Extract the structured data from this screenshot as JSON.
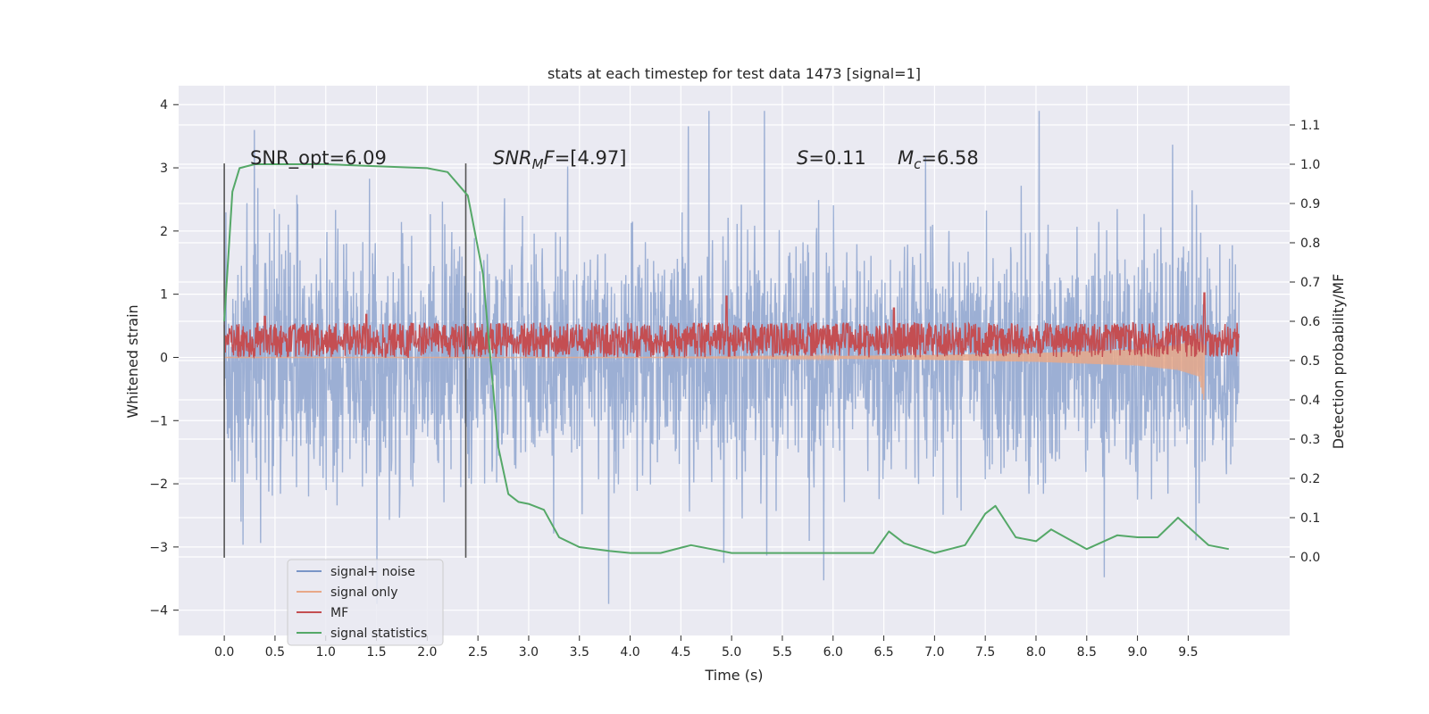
{
  "chart_data": {
    "type": "line",
    "title": "stats at each timestep for test data 1473 [signal=1]",
    "xlabel": "Time (s)",
    "ylabel": "Whitened strain",
    "y2label": "Detection probability/MF",
    "xlim": [
      -0.45,
      10.5
    ],
    "ylim": [
      -4.4,
      4.3
    ],
    "y2lim": [
      -0.2,
      1.2
    ],
    "x_ticks": [
      "0.0",
      "0.5",
      "1.0",
      "1.5",
      "2.0",
      "2.5",
      "3.0",
      "3.5",
      "4.0",
      "4.5",
      "5.0",
      "5.5",
      "6.0",
      "6.5",
      "7.0",
      "7.5",
      "8.0",
      "8.5",
      "9.0",
      "9.5"
    ],
    "y_ticks": [
      "4",
      "3",
      "2",
      "1",
      "0",
      "−1",
      "−2",
      "−3",
      "−4"
    ],
    "y2_ticks": [
      "1.1",
      "1.0",
      "0.9",
      "0.8",
      "0.7",
      "0.6",
      "0.5",
      "0.4",
      "0.3",
      "0.2",
      "0.1",
      "0.0"
    ],
    "grid": true,
    "legend_position": "lower-left",
    "colors": {
      "background": "#eaeaf2",
      "grid": "#ffffff",
      "signal_noise": "#7a96c7",
      "signal_only": "#dd8452",
      "mf": "#c44e52",
      "statistics": "#55a868",
      "vline": "#555555"
    },
    "annotations": {
      "snr_opt": "SNR_opt=6.09",
      "snr_mf": "SNR_MF=[4.97]",
      "s_value": "S=0.11",
      "mc_value": "M_c=6.58"
    },
    "vlines": [
      0.0,
      2.38
    ],
    "series": [
      {
        "name": "signal+ noise",
        "x_range": [
          0.0,
          10.0
        ],
        "abs_envelope_typical": 1.5,
        "abs_peak": 3.9
      },
      {
        "name": "signal only",
        "x": [
          0.0,
          4.0,
          5.0,
          6.0,
          7.0,
          8.0,
          9.0,
          9.4,
          9.6,
          9.66
        ],
        "y_lower": [
          0.0,
          0.0,
          -0.01,
          -0.02,
          -0.04,
          -0.07,
          -0.13,
          -0.2,
          -0.3,
          -0.72
        ],
        "y_upper": [
          0.0,
          0.0,
          0.01,
          0.02,
          0.04,
          0.07,
          0.13,
          0.2,
          0.3,
          0.2
        ]
      },
      {
        "name": "MF",
        "x_range": [
          0.0,
          10.0
        ],
        "y_band": [
          0.0,
          0.55
        ],
        "peaks": [
          [
            0.4,
            0.65
          ],
          [
            1.4,
            0.68
          ],
          [
            4.95,
            0.97
          ],
          [
            6.6,
            0.78
          ],
          [
            9.66,
            1.02
          ]
        ]
      },
      {
        "name": "signal statistics",
        "x": [
          0.0,
          0.08,
          0.15,
          0.3,
          0.5,
          1.0,
          1.5,
          2.0,
          2.2,
          2.4,
          2.55,
          2.7,
          2.8,
          2.9,
          3.0,
          3.15,
          3.3,
          3.5,
          3.8,
          4.0,
          4.3,
          4.6,
          5.0,
          5.5,
          6.0,
          6.4,
          6.55,
          6.7,
          7.0,
          7.3,
          7.5,
          7.6,
          7.8,
          8.0,
          8.15,
          8.5,
          8.8,
          9.0,
          9.2,
          9.4,
          9.7,
          9.9
        ],
        "y": [
          0.6,
          0.93,
          0.99,
          1.0,
          1.0,
          1.0,
          0.995,
          0.99,
          0.98,
          0.92,
          0.72,
          0.28,
          0.16,
          0.14,
          0.135,
          0.12,
          0.05,
          0.025,
          0.015,
          0.01,
          0.01,
          0.03,
          0.01,
          0.01,
          0.01,
          0.01,
          0.065,
          0.035,
          0.01,
          0.03,
          0.11,
          0.13,
          0.05,
          0.04,
          0.07,
          0.02,
          0.055,
          0.05,
          0.05,
          0.1,
          0.03,
          0.02
        ]
      }
    ]
  }
}
